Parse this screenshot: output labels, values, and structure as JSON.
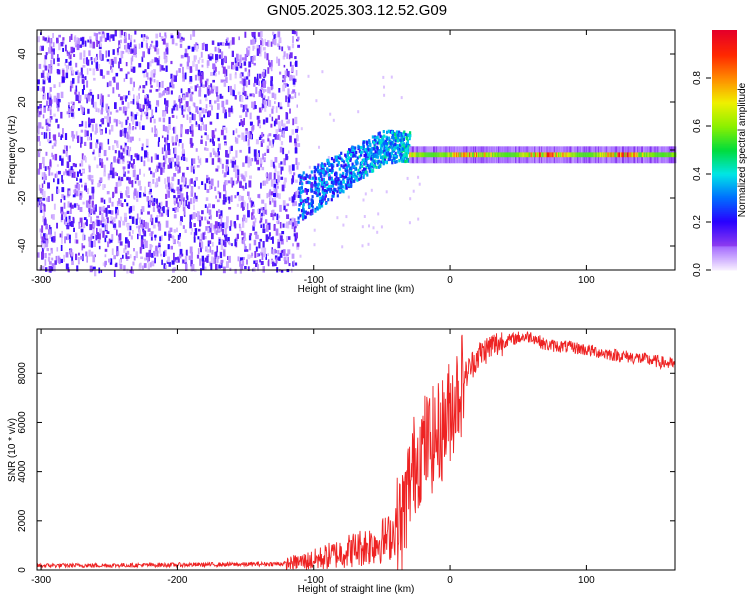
{
  "title": "GN05.2025.303.12.52.G09",
  "colors": {
    "snr_line": "#ee2222",
    "weak_signal": "#9a5ef0",
    "axis": "#000000"
  },
  "chart_data": [
    {
      "type": "heatmap",
      "xlabel": "Height of straight line (km)",
      "ylabel": "Frequency (Hz)",
      "xlim": [
        -303,
        165
      ],
      "ylim": [
        -50,
        50
      ],
      "x_ticks": [
        "-300",
        "-200",
        "-100",
        "0",
        "100"
      ],
      "x_tick_values": [
        -300,
        -200,
        -100,
        0,
        100
      ],
      "y_ticks": [
        "-40",
        "-20",
        "0",
        "20",
        "40"
      ],
      "y_tick_values": [
        -40,
        -20,
        0,
        20,
        40
      ],
      "colorbar": {
        "label": "Normalized spectral amplitude",
        "range": [
          0,
          1
        ],
        "ticks": [
          "0.0",
          "0.2",
          "0.4",
          "0.6",
          "0.8"
        ],
        "tick_values": [
          0,
          0.2,
          0.4,
          0.6,
          0.8
        ],
        "colormap": "rainbow (violet low to red high)"
      },
      "regions": [
        {
          "x_range": [
            -303,
            -112
          ],
          "freq_range": [
            -50,
            50
          ],
          "amplitude": "low, noise-like across all frequencies"
        },
        {
          "x_range": [
            -112,
            -30
          ],
          "freq_center_start": -20,
          "freq_center_end": 2,
          "amplitude": "rising, 0.2 to 0.5"
        },
        {
          "x_range": [
            -30,
            165
          ],
          "freq_center": -2,
          "amplitude": "high, 0.5 to 1.0, narrow line"
        }
      ]
    },
    {
      "type": "line",
      "xlabel": "Height of straight line (km)",
      "ylabel": "SNR (10 * v/v)",
      "xlim": [
        -303,
        165
      ],
      "ylim": [
        0,
        9800
      ],
      "x_ticks": [
        "-300",
        "-200",
        "-100",
        "0",
        "100"
      ],
      "x_tick_values": [
        -300,
        -200,
        -100,
        0,
        100
      ],
      "y_ticks": [
        "0",
        "2000",
        "4000",
        "6000",
        "8000"
      ],
      "y_tick_values": [
        0,
        2000,
        4000,
        6000,
        8000
      ],
      "x": [
        -303,
        -250,
        -200,
        -150,
        -120,
        -100,
        -80,
        -60,
        -45,
        -35,
        -30,
        -25,
        -20,
        -15,
        -10,
        -5,
        0,
        10,
        20,
        30,
        40,
        50,
        60,
        70,
        80,
        90,
        100,
        120,
        140,
        165
      ],
      "y": [
        180,
        190,
        210,
        230,
        260,
        400,
        700,
        1000,
        1300,
        2000,
        3500,
        4500,
        5000,
        5200,
        5400,
        5800,
        6500,
        7800,
        8700,
        9100,
        9300,
        9450,
        9500,
        9150,
        9100,
        9050,
        8950,
        8750,
        8600,
        8350
      ]
    }
  ]
}
